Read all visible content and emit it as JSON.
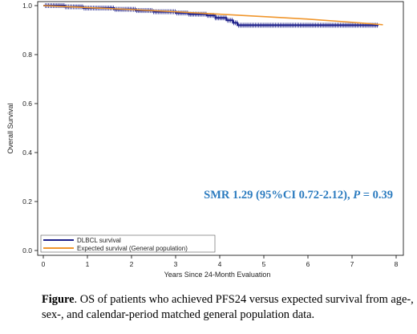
{
  "chart_data": {
    "type": "line",
    "xlabel": "Years Since 24-Month Evaluation",
    "ylabel": "Overall Survival",
    "xlim": [
      0,
      8
    ],
    "ylim": [
      0,
      1.0
    ],
    "xticks": [
      "0",
      "1",
      "2",
      "3",
      "4",
      "5",
      "6",
      "7",
      "8"
    ],
    "yticks": [
      "0.0",
      "0.2",
      "0.4",
      "0.6",
      "0.8",
      "1.0"
    ],
    "grid": false,
    "legend_placement": "bottom-left",
    "series": [
      {
        "name": "DLBCL survival",
        "color": "#1c1f8a",
        "step": true,
        "x": [
          0,
          0.5,
          0.9,
          1.6,
          2.1,
          2.5,
          3.0,
          3.3,
          3.7,
          3.9,
          4.15,
          4.3,
          4.4,
          7.6
        ],
        "y": [
          1.0,
          0.995,
          0.99,
          0.985,
          0.98,
          0.975,
          0.97,
          0.965,
          0.96,
          0.95,
          0.94,
          0.93,
          0.92,
          0.92
        ],
        "censor_range": [
          0.05,
          7.6
        ]
      },
      {
        "name": "Expected survival (General population)",
        "color": "#f0962c",
        "step": false,
        "x": [
          0,
          1,
          2,
          3,
          4,
          5,
          6,
          7,
          7.7
        ],
        "y": [
          1.0,
          0.992,
          0.984,
          0.975,
          0.965,
          0.955,
          0.945,
          0.932,
          0.922
        ]
      }
    ],
    "annotation": {
      "prefix": "SMR 1.29 (95%CI 0.72-2.12), ",
      "p_label": "P",
      "suffix": " = 0.39",
      "color": "#2b7bbf"
    }
  },
  "caption": {
    "label": "Figure",
    "text": ". OS of patients who achieved PFS24 versus expected survival from age-, sex-, and calendar-period matched general population data."
  }
}
